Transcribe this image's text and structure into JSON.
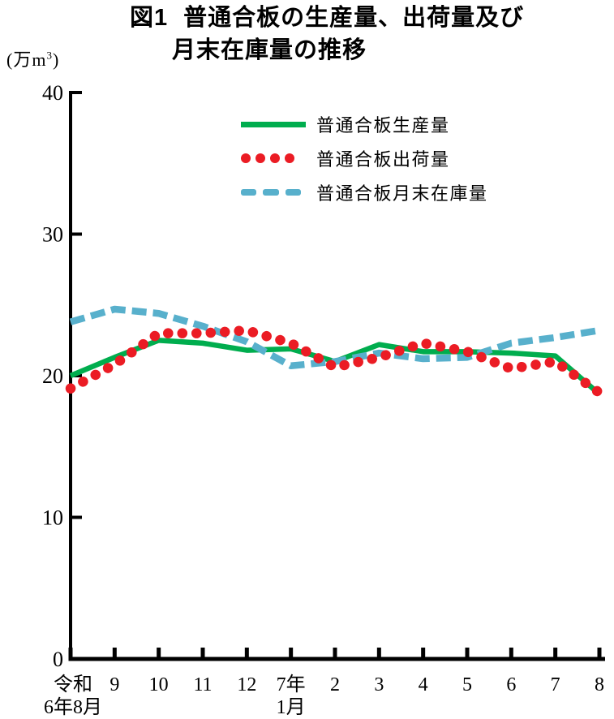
{
  "figure": {
    "title_line1": "図1 普通合板の生産量、出荷量及び",
    "title_line2": "月末在庫量の推移",
    "unit": {
      "prefix": "(万m",
      "sup": "3",
      "suffix": ")"
    }
  },
  "chart_data": {
    "type": "line",
    "title": "図1 普通合板の生産量、出荷量及び月末在庫量の推移",
    "ylabel": "(万m³)",
    "xlabel": "",
    "ylim": [
      0,
      40
    ],
    "y_ticks": [
      0,
      10,
      20,
      30,
      40
    ],
    "grid": false,
    "legend_position": "top-inside",
    "x_labels": [
      [
        "令和",
        "6年8月"
      ],
      [
        "9"
      ],
      [
        "10"
      ],
      [
        "11"
      ],
      [
        "12"
      ],
      [
        "7年",
        "1月"
      ],
      [
        "2"
      ],
      [
        "3"
      ],
      [
        "4"
      ],
      [
        "5"
      ],
      [
        "6"
      ],
      [
        "7"
      ],
      [
        "8"
      ]
    ],
    "series": [
      {
        "name": "普通合板生産量",
        "key": "production",
        "style": "solid",
        "color": "#00AD4E",
        "values": [
          20.0,
          21.3,
          22.5,
          22.3,
          21.8,
          21.9,
          21.0,
          22.2,
          21.7,
          21.7,
          21.6,
          21.4,
          18.7
        ]
      },
      {
        "name": "普通合板出荷量",
        "key": "shipments",
        "style": "dotted",
        "color": "#EB1C24",
        "values": [
          19.1,
          20.8,
          23.0,
          23.0,
          23.2,
          22.3,
          20.6,
          21.3,
          22.3,
          21.7,
          20.5,
          21.0,
          18.8
        ]
      },
      {
        "name": "普通合板月末在庫量",
        "key": "inventory",
        "style": "dashed",
        "color": "#58B0CC",
        "values": [
          23.8,
          24.7,
          24.4,
          23.5,
          22.4,
          20.7,
          21.0,
          21.6,
          21.2,
          21.3,
          22.3,
          22.7,
          23.2
        ]
      }
    ]
  }
}
